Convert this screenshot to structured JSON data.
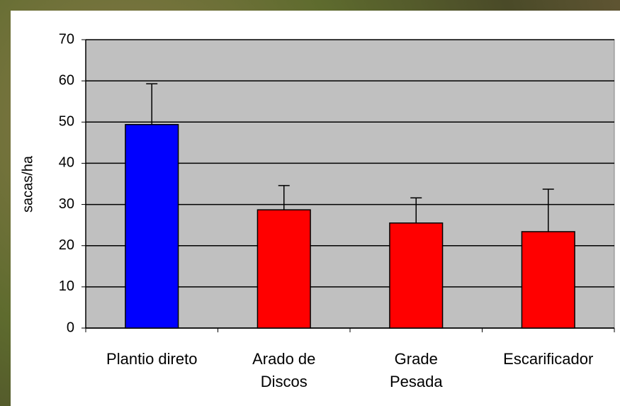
{
  "chart_data": {
    "type": "bar",
    "y_label": "sacas/ha",
    "categories": [
      "Plantio direto",
      "Arado de\nDiscos",
      "Grade\nPesada",
      "Escarificador"
    ],
    "values": [
      49.4,
      28.7,
      25.5,
      23.4
    ],
    "errors": [
      9.9,
      5.9,
      6.1,
      10.3
    ],
    "colors": [
      "#0000ff",
      "#ff0000",
      "#ff0000",
      "#ff0000"
    ],
    "background_color": "#c0c0c0",
    "ylim": [
      0,
      70
    ],
    "yticks": [
      0,
      10,
      20,
      30,
      40,
      50,
      60,
      70
    ],
    "grid": true
  }
}
